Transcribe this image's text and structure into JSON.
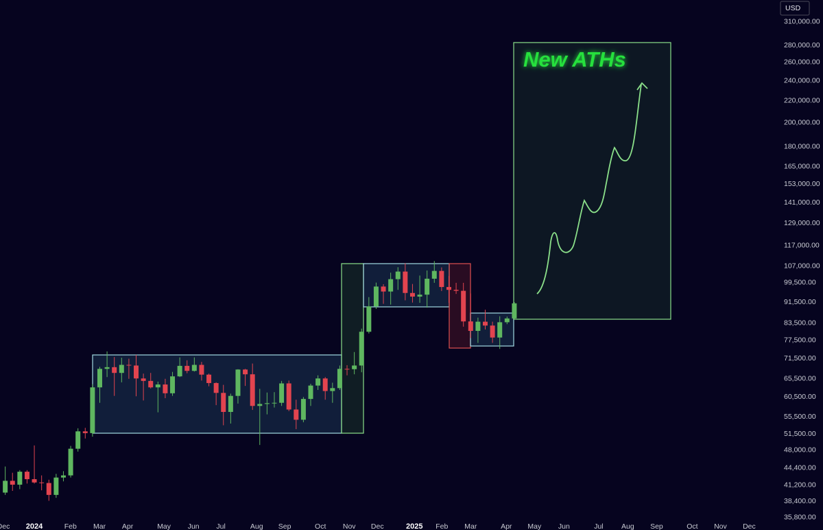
{
  "chart_data": {
    "type": "candlestick",
    "currency": "USD",
    "annotation": "New ATHs",
    "log_y": true,
    "up_color": "#5fb760",
    "down_color": "#e2444f",
    "x": [
      -4,
      -3,
      -2,
      -1,
      0,
      1,
      2,
      3,
      4,
      5,
      6,
      7,
      8,
      9,
      10,
      11,
      12,
      13,
      14,
      15,
      16,
      17,
      18,
      19,
      20,
      21,
      22,
      23,
      24,
      25,
      26,
      27,
      28,
      29,
      30,
      31,
      32,
      33,
      34,
      35,
      36,
      37,
      38,
      39,
      40,
      41,
      42,
      43,
      44,
      45,
      46,
      47,
      48,
      49,
      50,
      51,
      52,
      53,
      54,
      55,
      56,
      57,
      58,
      59,
      60,
      61,
      62,
      63,
      64,
      65,
      66
    ],
    "open": [
      39900,
      42000,
      41300,
      43700,
      42300,
      41700,
      41600,
      39500,
      42600,
      43000,
      48300,
      52100,
      51700,
      63100,
      68400,
      68900,
      67200,
      69600,
      69400,
      65600,
      64900,
      63100,
      63900,
      61500,
      66200,
      69300,
      67800,
      69600,
      66700,
      64300,
      61600,
      56700,
      60800,
      68200,
      66800,
      58200,
      58700,
      58900,
      59000,
      64200,
      57300,
      54800,
      60000,
      63600,
      65600,
      62100,
      62900,
      68400,
      68300,
      69400,
      80400,
      89800,
      97900,
      95800,
      101100,
      104500,
      95200,
      93700,
      94500,
      101300,
      104800,
      97700,
      96500,
      96100,
      84100,
      80700,
      84000,
      82600,
      78400,
      83800,
      85200
    ],
    "high": [
      44700,
      43500,
      44000,
      44000,
      49000,
      43000,
      42200,
      43300,
      43800,
      48900,
      52800,
      52900,
      64000,
      69000,
      73800,
      72000,
      71800,
      71500,
      72700,
      67000,
      67200,
      64700,
      65500,
      67500,
      71900,
      71000,
      71900,
      70500,
      67000,
      64500,
      63800,
      61400,
      68300,
      68400,
      70000,
      62700,
      61700,
      61800,
      64900,
      65000,
      59800,
      60500,
      64100,
      66500,
      66000,
      64400,
      69400,
      69500,
      73600,
      81500,
      93500,
      99600,
      98900,
      104000,
      106500,
      108400,
      99000,
      102700,
      105000,
      109400,
      106400,
      102500,
      99500,
      99500,
      95000,
      85500,
      88500,
      84000,
      86000,
      85900,
      91500
    ],
    "low": [
      39500,
      40200,
      40500,
      41500,
      41500,
      40300,
      38500,
      39000,
      41900,
      42600,
      47700,
      50500,
      50900,
      59000,
      66000,
      60800,
      64500,
      65500,
      60700,
      59600,
      62800,
      56600,
      60200,
      60800,
      66000,
      67100,
      67600,
      65000,
      63400,
      58400,
      53500,
      53900,
      58800,
      63500,
      57200,
      49100,
      56100,
      57800,
      58200,
      56900,
      52600,
      54200,
      58200,
      62400,
      59800,
      59000,
      62400,
      66500,
      66800,
      67400,
      79800,
      88800,
      90800,
      90500,
      96500,
      92200,
      91300,
      91200,
      89300,
      99500,
      96000,
      91200,
      94800,
      82200,
      78200,
      76600,
      81200,
      76600,
      74600,
      83100,
      84700
    ],
    "close": [
      42000,
      41300,
      43700,
      42300,
      41700,
      41600,
      39500,
      42600,
      43000,
      48300,
      52100,
      51700,
      63100,
      68400,
      68900,
      67200,
      69600,
      69400,
      65600,
      64900,
      63100,
      63900,
      61500,
      66200,
      69300,
      67800,
      69600,
      66700,
      64300,
      61600,
      56700,
      60800,
      68200,
      66800,
      58200,
      58700,
      58900,
      59000,
      64200,
      57300,
      54800,
      60000,
      63600,
      65600,
      62100,
      62900,
      68400,
      68300,
      69400,
      80400,
      89800,
      97900,
      95800,
      101100,
      104500,
      95200,
      93700,
      94500,
      101300,
      104800,
      97700,
      96500,
      96100,
      84100,
      80700,
      84000,
      82600,
      78400,
      83800,
      85200,
      91000
    ],
    "xlim": [
      -4.72,
      100.9
    ],
    "xticks": [
      {
        "value": -4.25,
        "label": "Dec"
      },
      {
        "value": 0,
        "label": "2024"
      },
      {
        "value": 4.97,
        "label": "Feb"
      },
      {
        "value": 8.96,
        "label": "Mar"
      },
      {
        "value": 12.83,
        "label": "Apr"
      },
      {
        "value": 17.83,
        "label": "May"
      },
      {
        "value": 21.89,
        "label": "Jun"
      },
      {
        "value": 25.66,
        "label": "Jul"
      },
      {
        "value": 30.57,
        "label": "Aug"
      },
      {
        "value": 34.43,
        "label": "Sep"
      },
      {
        "value": 39.34,
        "label": "Oct"
      },
      {
        "value": 43.3,
        "label": "Nov"
      },
      {
        "value": 47.17,
        "label": "Dec"
      },
      {
        "value": 52.26,
        "label": "2025"
      },
      {
        "value": 56.04,
        "label": "Feb"
      },
      {
        "value": 60.0,
        "label": "Mar"
      },
      {
        "value": 64.9,
        "label": "Apr"
      },
      {
        "value": 68.77,
        "label": "May"
      },
      {
        "value": 72.83,
        "label": "Jun"
      },
      {
        "value": 77.6,
        "label": "Jul"
      },
      {
        "value": 81.6,
        "label": "Aug"
      },
      {
        "value": 85.57,
        "label": "Sep"
      },
      {
        "value": 90.47,
        "label": "Oct"
      },
      {
        "value": 94.34,
        "label": "Nov"
      },
      {
        "value": 98.3,
        "label": "Dec"
      }
    ],
    "ylim": [
      33900,
      341100
    ],
    "yticks": [
      {
        "value": 310000,
        "label": "310,000.00"
      },
      {
        "value": 280000,
        "label": "280,000.00"
      },
      {
        "value": 260000,
        "label": "260,000.00"
      },
      {
        "value": 240000,
        "label": "240,000.00"
      },
      {
        "value": 220000,
        "label": "220,000.00"
      },
      {
        "value": 200000,
        "label": "200,000.00"
      },
      {
        "value": 180000,
        "label": "180,000.00"
      },
      {
        "value": 165000,
        "label": "165,000.00"
      },
      {
        "value": 153000,
        "label": "153,000.00"
      },
      {
        "value": 141000,
        "label": "141,000.00"
      },
      {
        "value": 129000,
        "label": "129,000.00"
      },
      {
        "value": 117000,
        "label": "117,000.00"
      },
      {
        "value": 107000,
        "label": "107,000.00"
      },
      {
        "value": 99500,
        "label": "99,500.00"
      },
      {
        "value": 91500,
        "label": "91,500.00"
      },
      {
        "value": 83500,
        "label": "83,500.00"
      },
      {
        "value": 77500,
        "label": "77,500.00"
      },
      {
        "value": 71500,
        "label": "71,500.00"
      },
      {
        "value": 65500,
        "label": "65,500.00"
      },
      {
        "value": 60500,
        "label": "60,500.00"
      },
      {
        "value": 55500,
        "label": "55,500.00"
      },
      {
        "value": 51500,
        "label": "51,500.00"
      },
      {
        "value": 48000,
        "label": "48,000.00"
      },
      {
        "value": 44400,
        "label": "44,400.00"
      },
      {
        "value": 41200,
        "label": "41,200.00"
      },
      {
        "value": 38400,
        "label": "38,400.00"
      },
      {
        "value": 35800,
        "label": "35,800.00"
      }
    ]
  }
}
